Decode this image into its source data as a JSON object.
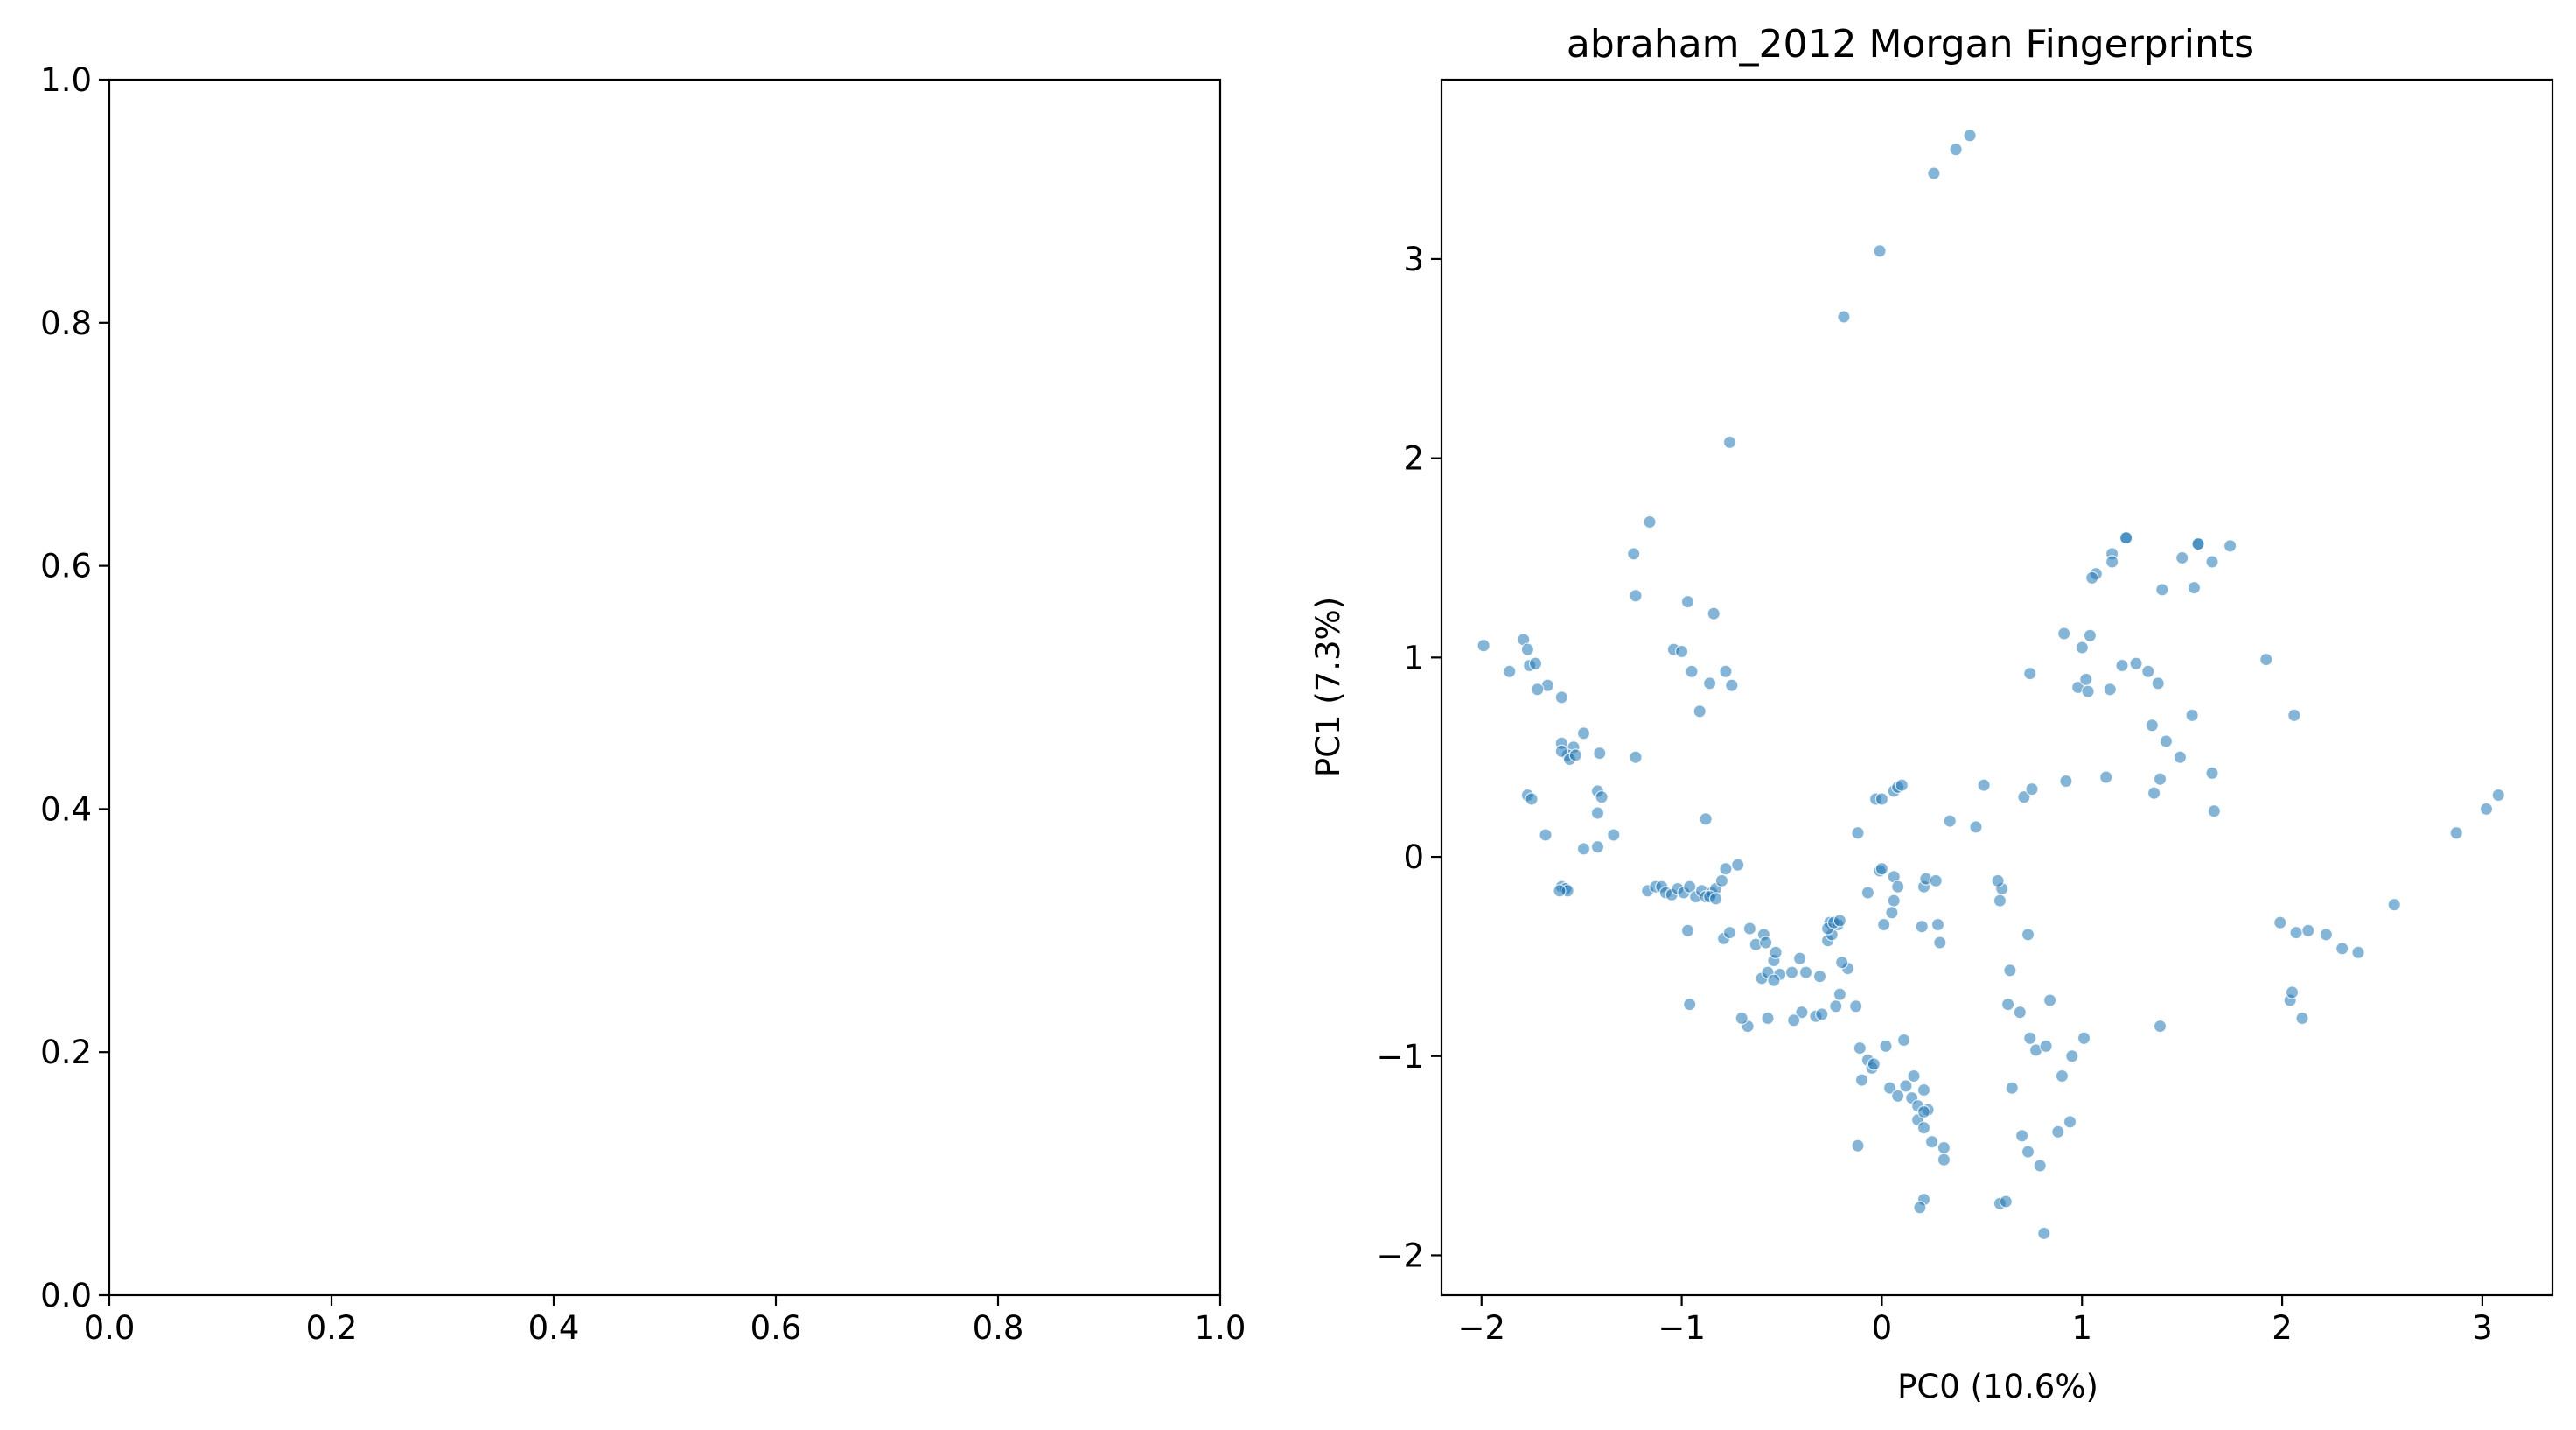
{
  "chart_data": [
    {
      "type": "empty",
      "title": "",
      "xlabel": "",
      "ylabel": "",
      "xlim": [
        0,
        1
      ],
      "ylim": [
        0,
        1
      ],
      "xticks": [
        0.0,
        0.2,
        0.4,
        0.6,
        0.8,
        1.0
      ],
      "yticks": [
        0.0,
        0.2,
        0.4,
        0.6,
        0.8,
        1.0
      ],
      "xtick_labels": [
        "0.0",
        "0.2",
        "0.4",
        "0.6",
        "0.8",
        "1.0"
      ],
      "ytick_labels": [
        "0.0",
        "0.2",
        "0.4",
        "0.6",
        "0.8",
        "1.0"
      ]
    },
    {
      "type": "scatter",
      "title": "abraham_2012 Morgan Fingerprints",
      "xlabel": "PC0 (10.6%)",
      "ylabel": "PC1 (7.3%)",
      "xlim": [
        -2.2,
        3.35
      ],
      "ylim": [
        -2.2,
        3.9
      ],
      "grid": false,
      "marker_color": "#1f77b4",
      "marker_alpha": 0.55,
      "xticks": [
        -2,
        -1,
        0,
        1,
        2,
        3
      ],
      "yticks": [
        -2,
        -1,
        0,
        1,
        2,
        3
      ],
      "xtick_labels": [
        "−2",
        "−1",
        "0",
        "1",
        "2",
        "3"
      ],
      "ytick_labels": [
        "−2",
        "−1",
        "0",
        "1",
        "2",
        "3"
      ],
      "series": [
        {
          "x": [
            0.44,
            0.37,
            0.26,
            -0.01,
            -0.19,
            -0.76,
            1.22,
            1.22,
            1.58,
            1.58,
            1.5,
            1.74,
            1.65,
            1.15,
            1.15,
            1.07,
            1.05,
            1.4,
            1.56,
            1.92,
            2.06,
            1.2,
            1.27,
            -1.16,
            -1.24,
            -1.23,
            -0.97,
            -0.84,
            -0.95,
            -0.78,
            -0.86,
            -1.04,
            -1.0,
            -0.91,
            -0.75,
            -1.99,
            -1.86,
            -1.79,
            -1.77,
            -1.76,
            -1.73,
            -1.67,
            -1.6,
            -1.72,
            -1.6,
            -1.49,
            -1.41,
            -1.54,
            -1.57,
            -1.6,
            -1.56,
            -1.53,
            -1.23,
            -1.42,
            -1.4,
            -1.77,
            -1.75,
            -1.68,
            -1.42,
            -1.34,
            -1.42,
            -1.49,
            -1.6,
            -1.58,
            -1.57,
            -1.61,
            -1.17,
            -1.13,
            -1.1,
            -1.08,
            -1.05,
            -1.02,
            -0.99,
            -0.96,
            -0.93,
            -0.9,
            -0.88,
            -0.85,
            -0.83,
            -0.8,
            -0.78,
            -0.72,
            -0.88,
            -0.86,
            -0.83,
            -0.97,
            -0.79,
            -0.76,
            -0.66,
            -0.59,
            -0.54,
            -0.51,
            -0.6,
            -0.57,
            -0.54,
            -0.63,
            -0.58,
            -0.53,
            -0.41,
            -0.38,
            -0.31,
            -0.27,
            -0.25,
            -0.26,
            -0.67,
            -0.7,
            -0.57,
            -0.96,
            -0.4,
            -0.44,
            -0.33,
            -0.3,
            -0.23,
            -0.13,
            -0.21,
            -0.17,
            -0.45,
            -0.2,
            -0.27,
            -0.22,
            -0.24,
            -0.21,
            -0.12,
            -0.03,
            0.0,
            0.06,
            0.08,
            0.1,
            0.34,
            0.47,
            -0.01,
            0.06,
            0.08,
            0.06,
            0.05,
            0.01,
            -0.07,
            0.0,
            -0.11,
            -0.07,
            -0.05,
            0.02,
            0.11,
            0.16,
            0.21,
            0.15,
            0.23,
            0.18,
            0.21,
            0.25,
            0.31,
            0.31,
            0.29,
            0.28,
            -0.04,
            -0.1,
            0.04,
            0.08,
            0.12,
            0.18,
            0.21,
            -0.12,
            0.21,
            0.19,
            0.59,
            0.62,
            0.64,
            0.73,
            0.69,
            0.65,
            0.7,
            0.73,
            0.79,
            0.81,
            0.9,
            0.94,
            0.88,
            0.77,
            0.74,
            0.82,
            0.51,
            0.71,
            0.75,
            0.92,
            0.98,
            1.02,
            1.03,
            1.14,
            1.33,
            1.38,
            1.35,
            1.55,
            1.42,
            1.65,
            0.74,
            0.91,
            1.0,
            1.04,
            1.12,
            1.36,
            1.39,
            1.49,
            1.66,
            1.99,
            2.07,
            2.13,
            2.22,
            2.3,
            2.38,
            2.56,
            2.04,
            2.05,
            2.1,
            2.87,
            3.02,
            3.08,
            0.95,
            1.01,
            0.63,
            0.84,
            0.6,
            0.59,
            0.58,
            0.2,
            0.21,
            0.22,
            0.27,
            1.39
          ],
          "y": [
            3.62,
            3.55,
            3.43,
            3.04,
            2.71,
            2.08,
            1.6,
            1.6,
            1.57,
            1.57,
            1.5,
            1.56,
            1.48,
            1.52,
            1.48,
            1.42,
            1.4,
            1.34,
            1.35,
            0.99,
            0.71,
            0.96,
            0.97,
            1.68,
            1.52,
            1.31,
            1.28,
            1.22,
            0.93,
            0.93,
            0.87,
            1.04,
            1.03,
            0.73,
            0.86,
            1.06,
            0.93,
            1.09,
            1.04,
            0.96,
            0.97,
            0.86,
            0.8,
            0.84,
            0.57,
            0.62,
            0.52,
            0.55,
            0.51,
            0.53,
            0.49,
            0.51,
            0.5,
            0.33,
            0.3,
            0.31,
            0.29,
            0.11,
            0.22,
            0.11,
            0.05,
            0.04,
            -0.15,
            -0.16,
            -0.17,
            -0.17,
            -0.17,
            -0.15,
            -0.15,
            -0.18,
            -0.19,
            -0.16,
            -0.18,
            -0.15,
            -0.2,
            -0.17,
            -0.2,
            -0.18,
            -0.16,
            -0.12,
            -0.06,
            -0.04,
            0.19,
            -0.2,
            -0.21,
            -0.37,
            -0.41,
            -0.38,
            -0.36,
            -0.39,
            -0.52,
            -0.59,
            -0.61,
            -0.58,
            -0.62,
            -0.44,
            -0.43,
            -0.48,
            -0.51,
            -0.58,
            -0.6,
            -0.42,
            -0.39,
            -0.33,
            -0.85,
            -0.81,
            -0.81,
            -0.74,
            -0.78,
            -0.82,
            -0.8,
            -0.79,
            -0.75,
            -0.75,
            -0.69,
            -0.56,
            -0.58,
            -0.53,
            -0.36,
            -0.34,
            -0.33,
            -0.32,
            0.12,
            0.29,
            0.29,
            0.33,
            0.35,
            0.36,
            0.18,
            0.15,
            -0.07,
            -0.1,
            -0.15,
            -0.22,
            -0.28,
            -0.34,
            -0.18,
            -0.06,
            -0.96,
            -1.02,
            -1.06,
            -0.95,
            -0.92,
            -1.1,
            -1.17,
            -1.21,
            -1.27,
            -1.32,
            -1.36,
            -1.43,
            -1.46,
            -1.52,
            -0.43,
            -0.34,
            -1.04,
            -1.12,
            -1.16,
            -1.2,
            -1.15,
            -1.25,
            -1.28,
            -1.45,
            -1.72,
            -1.76,
            -1.74,
            -1.73,
            -0.57,
            -0.39,
            -0.78,
            -1.16,
            -1.4,
            -1.48,
            -1.55,
            -1.89,
            -1.1,
            -1.33,
            -1.38,
            -0.97,
            -0.91,
            -0.95,
            0.36,
            0.3,
            0.34,
            0.38,
            0.85,
            0.89,
            0.83,
            0.84,
            0.93,
            0.87,
            0.66,
            0.71,
            0.58,
            0.42,
            0.92,
            1.12,
            1.05,
            1.11,
            0.4,
            0.32,
            0.39,
            0.5,
            0.23,
            -0.33,
            -0.38,
            -0.37,
            -0.39,
            -0.46,
            -0.48,
            -0.24,
            -0.72,
            -0.68,
            -0.81,
            0.12,
            0.24,
            0.31,
            -1.0,
            -0.91,
            -0.74,
            -0.72,
            -0.16,
            -0.22,
            -0.12,
            -0.35,
            -0.15,
            -0.11,
            -0.12,
            -0.85
          ]
        }
      ]
    }
  ]
}
